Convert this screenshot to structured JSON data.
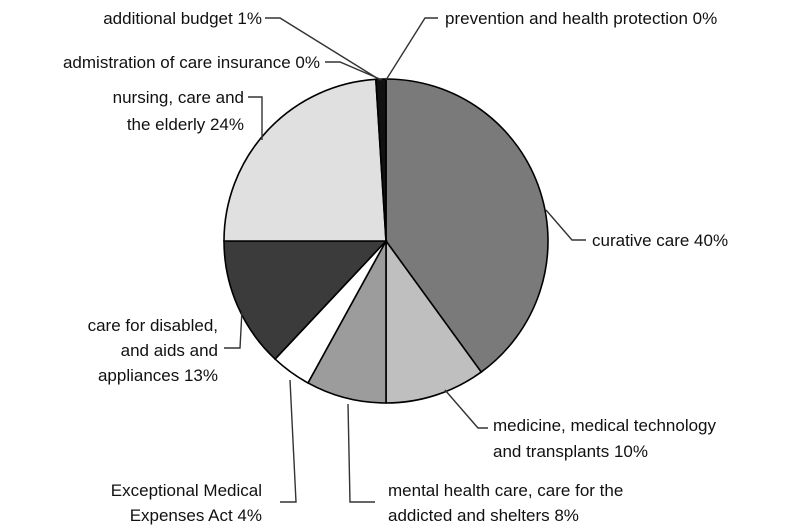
{
  "chart_data": {
    "type": "pie",
    "title": "",
    "slices": [
      {
        "label": "prevention and health protection 0%",
        "value": 0,
        "color": "#2a2a2a"
      },
      {
        "label": "curative care  40%",
        "value": 40,
        "color": "#7a7a7a"
      },
      {
        "label": "medicine, medical technology and transplants  10%",
        "value": 10,
        "color": "#bfbfbf"
      },
      {
        "label": "mental health care, care for the addicted and shelters 8%",
        "value": 8,
        "color": "#9c9c9c"
      },
      {
        "label": "Exceptional Medical Expenses Act  4%",
        "value": 4,
        "color": "#ffffff"
      },
      {
        "label": "care for disabled, and aids and appliances 13%",
        "value": 13,
        "color": "#3b3b3b"
      },
      {
        "label": "nursing, care and the elderly 24%",
        "value": 24,
        "color": "#e0e0e0"
      },
      {
        "label": "admistration of care insurance 0%",
        "value": 0,
        "color": "#2a2a2a"
      },
      {
        "label": "additional budget 1%",
        "value": 1,
        "color": "#111111"
      }
    ]
  },
  "labels": {
    "prevention": "prevention and health protection 0%",
    "curative": "curative care  40%",
    "medicine_1": "medicine, medical technology",
    "medicine_2": "and transplants  10%",
    "mental_1": "mental health care, care for the",
    "mental_2": "addicted and shelters 8%",
    "exceptional_1": "Exceptional Medical",
    "exceptional_2": "Expenses Act  4%",
    "disabled_1": "care for disabled,",
    "disabled_2": "and aids and",
    "disabled_3": "appliances 13%",
    "nursing_1": "nursing, care and",
    "nursing_2": "the elderly 24%",
    "administration": "admistration of care insurance 0%",
    "additional": "additional budget 1%"
  }
}
